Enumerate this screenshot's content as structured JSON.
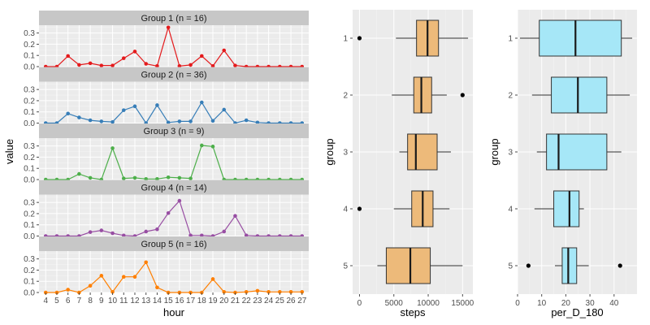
{
  "chart_data": [
    {
      "type": "line",
      "xlabel": "hour",
      "ylabel": "value",
      "x": [
        4,
        5,
        6,
        7,
        8,
        9,
        10,
        11,
        12,
        13,
        14,
        15,
        16,
        17,
        18,
        19,
        20,
        21,
        22,
        23,
        24,
        25,
        26,
        27
      ],
      "xticks": [
        "4",
        "5",
        "6",
        "7",
        "8",
        "9",
        "10",
        "11",
        "12",
        "13",
        "14",
        "15",
        "16",
        "17",
        "18",
        "19",
        "20",
        "21",
        "22",
        "23",
        "24",
        "25",
        "26",
        "27"
      ],
      "ylim": [
        0,
        0.37
      ],
      "yticks": [
        "0.0",
        "0.1",
        "0.2",
        "0.3"
      ],
      "grid": true,
      "panels": [
        {
          "label": "Group 1 (n = 16)",
          "color": "#e41a1c",
          "values": [
            0.0,
            0.0,
            0.095,
            0.015,
            0.03,
            0.01,
            0.01,
            0.075,
            0.135,
            0.025,
            0.005,
            0.35,
            0.005,
            0.015,
            0.095,
            0.005,
            0.145,
            0.01,
            0.0,
            0.0,
            0.0,
            0.0,
            0.0,
            0.0
          ]
        },
        {
          "label": "Group 2 (n = 36)",
          "color": "#377eb8",
          "values": [
            0.0,
            0.0,
            0.085,
            0.05,
            0.025,
            0.015,
            0.01,
            0.115,
            0.15,
            0.0,
            0.16,
            0.005,
            0.015,
            0.015,
            0.185,
            0.02,
            0.12,
            0.0,
            0.025,
            0.005,
            0.0,
            0.0,
            0.0,
            0.0
          ]
        },
        {
          "label": "Group 3 (n = 9)",
          "color": "#4daf4a",
          "values": [
            0.0,
            0.0,
            0.0,
            0.05,
            0.015,
            0.0,
            0.28,
            0.01,
            0.015,
            0.005,
            0.005,
            0.02,
            0.015,
            0.01,
            0.305,
            0.295,
            0.0,
            0.0,
            0.0,
            0.0,
            0.0,
            0.0,
            0.0,
            0.0
          ]
        },
        {
          "label": "Group 4 (n = 14)",
          "color": "#984ea3",
          "values": [
            0.0,
            0.0,
            0.0,
            0.0,
            0.035,
            0.05,
            0.025,
            0.005,
            0.0,
            0.04,
            0.06,
            0.205,
            0.315,
            0.005,
            0.005,
            0.0,
            0.04,
            0.18,
            0.005,
            0.0,
            0.0,
            0.0,
            0.0,
            0.0
          ]
        },
        {
          "label": "Group 5 (n = 16)",
          "color": "#ff7f00",
          "values": [
            0.0,
            0.0,
            0.025,
            0.0,
            0.06,
            0.15,
            0.005,
            0.14,
            0.14,
            0.27,
            0.045,
            0.0,
            0.0,
            0.0,
            0.0,
            0.12,
            0.005,
            0.0,
            0.005,
            0.015,
            0.005,
            0.005,
            0.005,
            0.005
          ]
        }
      ]
    },
    {
      "type": "boxplot",
      "orientation": "horizontal",
      "xlabel": "steps",
      "ylabel": "group",
      "categories": [
        "1",
        "2",
        "3",
        "4",
        "5"
      ],
      "xlim": [
        -1000,
        16500
      ],
      "xticks": [
        0,
        5000,
        10000,
        15000
      ],
      "xtick_labels": [
        "0",
        "5000",
        "10000",
        "15000"
      ],
      "fill": "#edba7a",
      "boxes": [
        {
          "group": "1",
          "whisker_low": 5300,
          "q1": 8300,
          "median": 9900,
          "q3": 11500,
          "whisker_high": 15800,
          "outliers": [
            0
          ]
        },
        {
          "group": "2",
          "whisker_low": 4700,
          "q1": 7900,
          "median": 9000,
          "q3": 10500,
          "whisker_high": 12700,
          "outliers": [
            15000
          ]
        },
        {
          "group": "3",
          "whisker_low": 5800,
          "q1": 7000,
          "median": 8200,
          "q3": 11300,
          "whisker_high": 13300,
          "outliers": []
        },
        {
          "group": "4",
          "whisker_low": 5000,
          "q1": 7600,
          "median": 9200,
          "q3": 10700,
          "whisker_high": 13100,
          "outliers": [
            0
          ]
        },
        {
          "group": "5",
          "whisker_low": 2600,
          "q1": 3900,
          "median": 7400,
          "q3": 10300,
          "whisker_high": 15000,
          "outliers": []
        }
      ]
    },
    {
      "type": "boxplot",
      "orientation": "horizontal",
      "xlabel": "per_D_180",
      "ylabel": "group",
      "categories": [
        "1",
        "2",
        "3",
        "4",
        "5"
      ],
      "xlim": [
        0,
        49.5
      ],
      "xticks": [
        0,
        10,
        20,
        30,
        40
      ],
      "xtick_labels": [
        "0",
        "10",
        "20",
        "30",
        "40"
      ],
      "fill": "#a6e7f7",
      "boxes": [
        {
          "group": "1",
          "whisker_low": 1,
          "q1": 9,
          "median": 24,
          "q3": 43,
          "whisker_high": 47.5,
          "outliers": []
        },
        {
          "group": "2",
          "whisker_low": 6,
          "q1": 14,
          "median": 25,
          "q3": 37,
          "whisker_high": 46.5,
          "outliers": []
        },
        {
          "group": "3",
          "whisker_low": 8,
          "q1": 12,
          "median": 17,
          "q3": 37,
          "whisker_high": 43,
          "outliers": []
        },
        {
          "group": "4",
          "whisker_low": 7,
          "q1": 15,
          "median": 21.5,
          "q3": 25.5,
          "whisker_high": 27.5,
          "outliers": []
        },
        {
          "group": "5",
          "whisker_low": 15.5,
          "q1": 18.5,
          "median": 21,
          "q3": 24.5,
          "whisker_high": 29.5,
          "outliers": [
            4.5,
            42.5
          ]
        }
      ]
    }
  ]
}
